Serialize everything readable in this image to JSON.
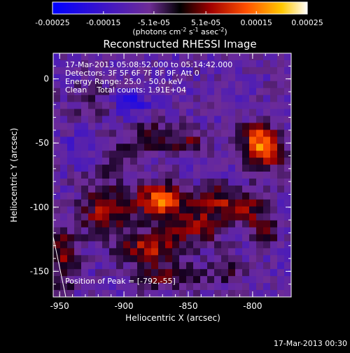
{
  "chart_data": {
    "type": "heatmap",
    "title": "Reconstructed RHESSI Image",
    "xlabel": "Heliocentric X (arcsec)",
    "ylabel": "Heliocentric Y (arcsec)",
    "xlim": [
      -955,
      -770
    ],
    "ylim": [
      -170,
      20
    ],
    "x_ticks": [
      -950,
      -900,
      -850,
      -800
    ],
    "y_ticks": [
      0,
      -50,
      -100,
      -150
    ],
    "x_tick_labels": [
      "-950",
      "-900",
      "-850",
      "-800"
    ],
    "y_tick_labels": [
      "0",
      "-50",
      "-100",
      "-150"
    ],
    "colorbar": {
      "min": -0.00025,
      "max": 0.00025,
      "ticks": [
        -0.00025,
        -0.00015,
        -5.1e-05,
        5.1e-05,
        0.00015,
        0.00025
      ],
      "tick_labels": [
        "-0.00025",
        "-0.00015",
        "-5.1e-05",
        "5.1e-05",
        "0.00015",
        "0.00025"
      ],
      "unit_label": "(photons cm-2 s-1 asec-2)"
    },
    "info": {
      "time_range": "17-Mar-2013 05:08:52.000 to 05:14:42.000",
      "detectors": "Detectors: 3F 5F 6F 7F 8F 9F, Att 0",
      "energy_range": "Energy Range: 25.0 - 50.0 keV",
      "clean": "Clean    Total counts: 1.91E+04",
      "peak": "Position of Peak = [-792,-55]"
    },
    "peak_position": [
      -792,
      -55
    ],
    "timestamp": "17-Mar-2013 00:30",
    "blobs": [
      {
        "x": -790,
        "y": -55,
        "sx": 10,
        "sy": 9,
        "amp": 1.0
      },
      {
        "x": -800,
        "y": -42,
        "sx": 8,
        "sy": 6,
        "amp": 0.45
      },
      {
        "x": -872,
        "y": -95,
        "sx": 13,
        "sy": 10,
        "amp": 0.85
      },
      {
        "x": -880,
        "y": -132,
        "sx": 15,
        "sy": 9,
        "amp": 0.62
      },
      {
        "x": -915,
        "y": -102,
        "sx": 13,
        "sy": 16,
        "amp": 0.55
      },
      {
        "x": -948,
        "y": -140,
        "sx": 8,
        "sy": 20,
        "amp": 0.45
      },
      {
        "x": -845,
        "y": -115,
        "sx": 16,
        "sy": 10,
        "amp": 0.5
      },
      {
        "x": -830,
        "y": -95,
        "sx": 10,
        "sy": 8,
        "amp": 0.5
      },
      {
        "x": -805,
        "y": -100,
        "sx": 12,
        "sy": 10,
        "amp": 0.5
      },
      {
        "x": -790,
        "y": -120,
        "sx": 8,
        "sy": 8,
        "amp": 0.4
      },
      {
        "x": -880,
        "y": -45,
        "sx": 14,
        "sy": 8,
        "amp": 0.42
      },
      {
        "x": -850,
        "y": -48,
        "sx": 10,
        "sy": 7,
        "amp": 0.38
      },
      {
        "x": -905,
        "y": -62,
        "sx": 10,
        "sy": 7,
        "amp": 0.3
      },
      {
        "x": -868,
        "y": -155,
        "sx": 18,
        "sy": 7,
        "amp": 0.35
      },
      {
        "x": -820,
        "y": -150,
        "sx": 14,
        "sy": 7,
        "amp": 0.25
      },
      {
        "x": -925,
        "y": -15,
        "sx": 16,
        "sy": 12,
        "amp": 0.18
      },
      {
        "x": -895,
        "y": -18,
        "sx": 10,
        "sy": 8,
        "amp": -0.35
      },
      {
        "x": -935,
        "y": -55,
        "sx": 10,
        "sy": 8,
        "amp": -0.2
      }
    ]
  },
  "colors": {
    "background": "#000000",
    "foreground": "#ffffff"
  }
}
